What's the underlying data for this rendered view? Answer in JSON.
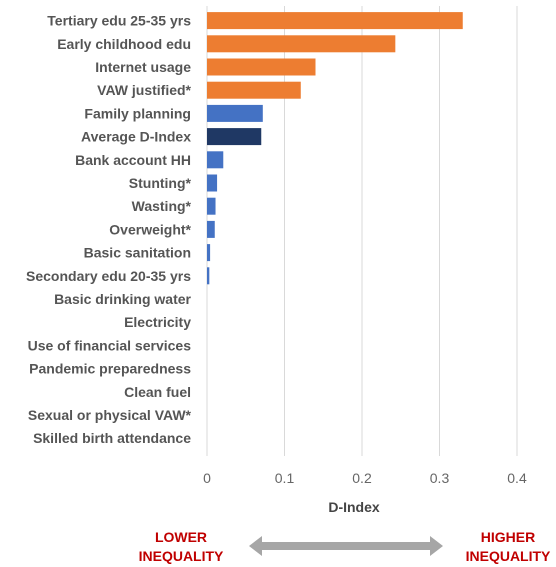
{
  "chart_data": {
    "type": "bar",
    "orientation": "horizontal",
    "categories": [
      "Tertiary edu 25-35 yrs",
      "Early childhood edu",
      "Internet usage",
      "VAW justified*",
      "Family planning",
      "Average D-Index",
      "Bank account HH",
      "Stunting*",
      "Wasting*",
      "Overweight*",
      "Basic sanitation",
      "Secondary edu 20-35 yrs",
      "Basic drinking water",
      "Electricity",
      "Use of financial services",
      "Pandemic preparedness",
      "Clean fuel",
      "Sexual or physical VAW*",
      "Skilled birth attendance"
    ],
    "values": [
      0.33,
      0.243,
      0.14,
      0.121,
      0.072,
      0.07,
      0.021,
      0.013,
      0.011,
      0.01,
      0.004,
      0.003,
      0,
      0,
      0,
      0,
      0,
      0,
      0
    ],
    "bar_colors": [
      "#ED7D31",
      "#ED7D31",
      "#ED7D31",
      "#ED7D31",
      "#4472C4",
      "#1F3864",
      "#4472C4",
      "#4472C4",
      "#4472C4",
      "#4472C4",
      "#4472C4",
      "#4472C4",
      "#4472C4",
      "#4472C4",
      "#4472C4",
      "#4472C4",
      "#4472C4",
      "#4472C4",
      "#4472C4"
    ],
    "xlabel": "D-Index",
    "xlim": [
      0,
      0.4
    ],
    "xticks": [
      0,
      0.1,
      0.2,
      0.3,
      0.4
    ],
    "xtick_labels": [
      "0",
      "0.1",
      "0.2",
      "0.3",
      "0.4"
    ],
    "grid": "vertical"
  },
  "footer": {
    "lower_label": "LOWER\nINEQUALITY",
    "higher_label": "HIGHER\nINEQUALITY",
    "label_color": "#C00000",
    "arrow_color": "#A6A6A6",
    "arrow_icon": "double-headed-arrow-icon"
  },
  "colors": {
    "gridline": "#D9D9D9",
    "category_text": "#555555",
    "tick_text": "#666666"
  }
}
